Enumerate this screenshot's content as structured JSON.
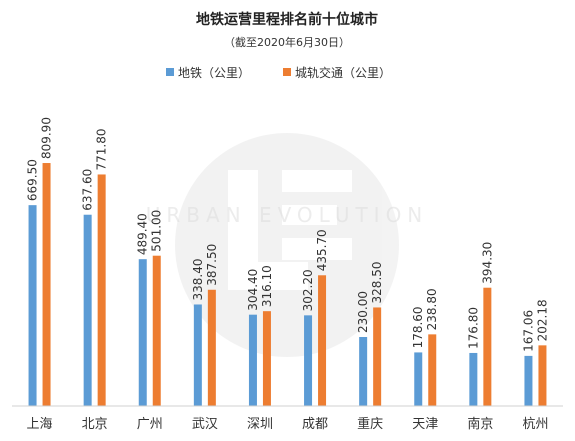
{
  "chart_data": {
    "type": "bar",
    "title": "地铁运营里程排名前十位城市",
    "subtitle": "（截至2020年6月30日）",
    "categories": [
      "上海",
      "北京",
      "广州",
      "武汉",
      "深圳",
      "成都",
      "重庆",
      "天津",
      "南京",
      "杭州"
    ],
    "series": [
      {
        "name": "地铁（公里）",
        "color": "#5b9bd5",
        "values": [
          669.5,
          637.6,
          489.4,
          338.4,
          304.4,
          302.2,
          230.0,
          178.6,
          176.8,
          167.06
        ],
        "labels": [
          "669.50",
          "637.60",
          "489.40",
          "338.40",
          "304.40",
          "302.20",
          "230.00",
          "178.60",
          "176.80",
          "167.06"
        ]
      },
      {
        "name": "城轨交通（公里）",
        "color": "#ed7d31",
        "values": [
          809.9,
          771.8,
          501.0,
          387.5,
          316.1,
          435.7,
          328.5,
          238.8,
          394.3,
          202.18
        ],
        "labels": [
          "809.90",
          "771.80",
          "501.00",
          "387.50",
          "316.10",
          "435.70",
          "328.50",
          "238.80",
          "394.30",
          "202.18"
        ]
      }
    ],
    "ylim": [
      0,
      1000
    ],
    "xlabel": "",
    "ylabel": "",
    "grid": false,
    "legend": "top-center",
    "watermark": "URBAN EVOLUTION"
  }
}
